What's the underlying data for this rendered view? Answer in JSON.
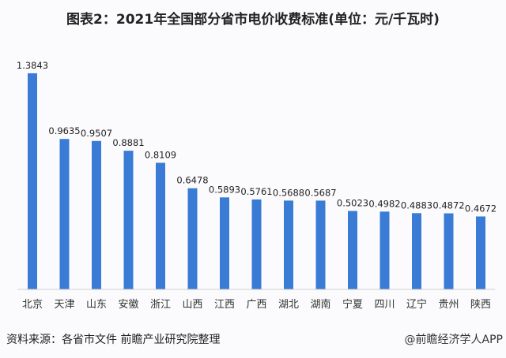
{
  "chart_data": {
    "type": "bar",
    "title": "图表2：2021年全国部分省市电价收费标准(单位：元/千瓦时)",
    "categories": [
      "北京",
      "天津",
      "山东",
      "安徽",
      "浙江",
      "山西",
      "江西",
      "广西",
      "湖北",
      "湖南",
      "宁夏",
      "四川",
      "辽宁",
      "贵州",
      "陕西"
    ],
    "values": [
      1.3843,
      0.9635,
      0.9507,
      0.8881,
      0.8109,
      0.6478,
      0.5893,
      0.5761,
      0.5688,
      0.5687,
      0.5023,
      0.4982,
      0.4883,
      0.4872,
      0.4672
    ],
    "value_labels": [
      "1.3843",
      "0.9635",
      "0.9507",
      "0.8881",
      "0.8109",
      "0.6478",
      "0.5893",
      "0.5761",
      "0.5688",
      "0.5687",
      "0.5023",
      "0.4982",
      "0.4883",
      "0.4872",
      "0.4672"
    ],
    "xlabel": "",
    "ylabel": "",
    "ylim": [
      0,
      1.4
    ],
    "grid": false,
    "legend": "none",
    "bar_color": "#3a7bd5"
  },
  "footer": {
    "source": "资料来源：各省市文件 前瞻产业研究院整理",
    "credit": "@前瞻经济学人APP"
  }
}
